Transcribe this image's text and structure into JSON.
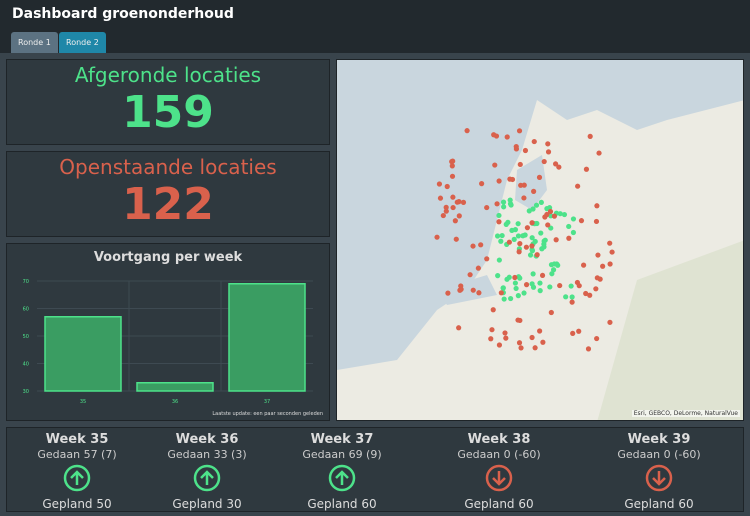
{
  "header": {
    "title": "Dashboard groenonderhoud",
    "tabs": [
      "Ronde 1",
      "Ronde 2"
    ]
  },
  "kpis": {
    "done_label": "Afgeronde locaties",
    "done_value": "159",
    "open_label": "Openstaande locaties",
    "open_value": "122"
  },
  "colors": {
    "green": "#4de28a",
    "red": "#d9614c"
  },
  "chart_data": {
    "type": "bar",
    "title": "Voortgang per week",
    "categories": [
      "35",
      "36",
      "37"
    ],
    "values": [
      57,
      33,
      69
    ],
    "ylim": [
      30,
      70
    ],
    "yticks": [
      30,
      40,
      50,
      60,
      70
    ],
    "footer": "Laatste update: een paar seconden geleden"
  },
  "map": {
    "attribution": "Esri, GEBCO, DeLorme, NaturalVue"
  },
  "weeks": [
    {
      "title": "Week 35",
      "done": "Gedaan 57 (7)",
      "planned": "Gepland 50",
      "trend": "up"
    },
    {
      "title": "Week 36",
      "done": "Gedaan 33 (3)",
      "planned": "Gepland 30",
      "trend": "up"
    },
    {
      "title": "Week 37",
      "done": "Gedaan 69 (9)",
      "planned": "Gepland 60",
      "trend": "up"
    },
    {
      "title": "Week 38",
      "done": "Gedaan 0 (-60)",
      "planned": "Gepland 60",
      "trend": "down"
    },
    {
      "title": "Week 39",
      "done": "Gedaan 0 (-60)",
      "planned": "Gepland 60",
      "trend": "down"
    }
  ]
}
